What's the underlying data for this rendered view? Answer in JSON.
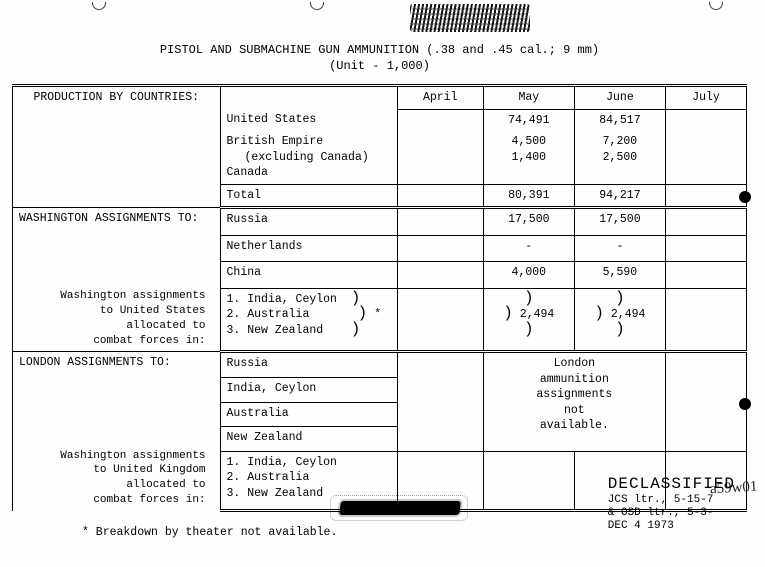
{
  "title_line1": "PISTOL AND SUBMACHINE GUN AMMUNITION (.38 and .45 cal.; 9 mm)",
  "title_line2": "(Unit - 1,000)",
  "columns": {
    "c1": "",
    "c2": "",
    "april": "April",
    "may": "May",
    "june": "June",
    "july": "July"
  },
  "section_production": "PRODUCTION BY COUNTRIES:",
  "prod": {
    "us": {
      "label": "United States",
      "may": "74,491",
      "june": "84,517"
    },
    "be": {
      "label": "British Empire",
      "sublabel": "(excluding Canada)",
      "may": "4,500",
      "june": "7,200"
    },
    "canada": {
      "label": "Canada",
      "may": "1,400",
      "june": "2,500"
    },
    "total": {
      "label": "Total",
      "may": "80,391",
      "june": "94,217"
    }
  },
  "section_wash": "WASHINGTON ASSIGNMENTS TO:",
  "wash": {
    "russia": {
      "label": "Russia",
      "may": "17,500",
      "june": "17,500"
    },
    "netherlands": {
      "label": "Netherlands",
      "may": "-",
      "june": "-"
    },
    "china": {
      "label": "China",
      "may": "4,000",
      "june": "5,590"
    },
    "note": {
      "lines": [
        "Washington assignments",
        "to United States",
        "allocated to",
        "combat forces in:"
      ],
      "items": [
        "1.  India, Ceylon",
        "2.  Australia",
        "3.  New Zealand"
      ],
      "aster": "*",
      "may": "2,494",
      "june": "2,494"
    }
  },
  "section_london": "LONDON ASSIGNMENTS TO:",
  "london": {
    "rows": [
      "Russia",
      "India, Ceylon",
      "Australia",
      "New Zealand"
    ],
    "span_note": [
      "London",
      "ammunition",
      "assignments",
      "not",
      "available."
    ],
    "note": {
      "lines": [
        "Washington assignments",
        "to United Kingdom",
        "allocated to",
        "combat forces in:"
      ],
      "items": [
        "1.  India, Ceylon",
        "2.  Australia",
        "3.  New Zealand"
      ]
    }
  },
  "footnote": "*  Breakdown by theater not available.",
  "declass": {
    "l1": "DECLASSIFIED",
    "l2": "JCS ltr., 5-15-7",
    "l3": "& OSD ltr., 5-3-",
    "l4": "DEC  4 1973"
  },
  "handwritten": "a59w01",
  "colors": {
    "ink": "#000000",
    "paper": "#fefefe"
  }
}
